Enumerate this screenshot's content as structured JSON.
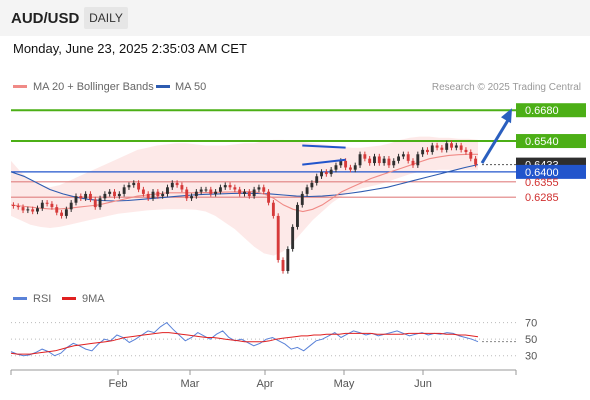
{
  "header": {
    "symbol": "AUD/USD",
    "period": "DAILY"
  },
  "datetime": "Monday, June 23, 2025 2:35:03 AM CET",
  "legend": {
    "ma20_label": "MA 20 + Bollinger Bands",
    "ma50_label": "MA 50",
    "copyright": "Research © 2025 Trading Central",
    "rsi_label": "RSI",
    "rsi_ma_label": "9MA"
  },
  "colors": {
    "up": "#2f2f2f",
    "down": "#d63a3a",
    "ma20": "#f08a86",
    "ma50": "#2d5bb0",
    "bands_fill": "#fde4e2",
    "resistance": "#4caf16",
    "pivot": "#2255cc",
    "support": "#e08080",
    "rsi": "#5a82d8",
    "rsi_ma": "#e02020",
    "arrow": "#2a5fbf"
  },
  "chart_data": {
    "type": "candlestick",
    "x_ticks": [
      "Feb",
      "Mar",
      "Apr",
      "May",
      "Jun"
    ],
    "y_range": [
      0.59,
      0.674
    ],
    "levels": [
      {
        "value": 0.668,
        "label": "0.6680",
        "kind": "resistance"
      },
      {
        "value": 0.654,
        "label": "0.6540",
        "kind": "resistance"
      },
      {
        "value": 0.6433,
        "label": "0.6433",
        "kind": "last"
      },
      {
        "value": 0.64,
        "label": "0.6400",
        "kind": "pivot"
      },
      {
        "value": 0.6355,
        "label": "0.6355",
        "kind": "support"
      },
      {
        "value": 0.6285,
        "label": "0.6285",
        "kind": "support"
      }
    ],
    "closes": [
      0.6245,
      0.624,
      0.6225,
      0.623,
      0.622,
      0.6235,
      0.626,
      0.6255,
      0.624,
      0.6215,
      0.62,
      0.623,
      0.626,
      0.629,
      0.628,
      0.63,
      0.6275,
      0.624,
      0.628,
      0.63,
      0.631,
      0.629,
      0.63,
      0.633,
      0.634,
      0.635,
      0.632,
      0.63,
      0.628,
      0.631,
      0.629,
      0.63,
      0.633,
      0.635,
      0.634,
      0.632,
      0.628,
      0.629,
      0.631,
      0.632,
      0.632,
      0.63,
      0.631,
      0.633,
      0.634,
      0.633,
      0.632,
      0.63,
      0.631,
      0.629,
      0.632,
      0.633,
      0.631,
      0.626,
      0.62,
      0.6,
      0.595,
      0.605,
      0.615,
      0.625,
      0.63,
      0.633,
      0.635,
      0.638,
      0.64,
      0.639,
      0.641,
      0.643,
      0.645,
      0.642,
      0.641,
      0.643,
      0.648,
      0.646,
      0.644,
      0.647,
      0.644,
      0.646,
      0.643,
      0.645,
      0.647,
      0.648,
      0.645,
      0.643,
      0.648,
      0.65,
      0.649,
      0.652,
      0.651,
      0.65,
      0.653,
      0.651,
      0.652,
      0.65,
      0.649,
      0.646,
      0.6433
    ],
    "ma20": [
      0.625,
      0.6245,
      0.624,
      0.6235,
      0.6232,
      0.6232,
      0.6235,
      0.624,
      0.6245,
      0.625,
      0.626,
      0.627,
      0.628,
      0.629,
      0.6295,
      0.63,
      0.6305,
      0.6305,
      0.6305,
      0.6305,
      0.6306,
      0.6307,
      0.6308,
      0.6309,
      0.631,
      0.631,
      0.63,
      0.628,
      0.625,
      0.623,
      0.622,
      0.623,
      0.625,
      0.628,
      0.631,
      0.633,
      0.635,
      0.637,
      0.6385,
      0.64,
      0.6415,
      0.643,
      0.6445,
      0.646,
      0.6468,
      0.6475,
      0.6478,
      0.648,
      0.648
    ],
    "ma50": [
      0.64,
      0.638,
      0.635,
      0.632,
      0.63,
      0.6285,
      0.6275,
      0.627,
      0.6268,
      0.627,
      0.6275,
      0.628,
      0.6285,
      0.629,
      0.6295,
      0.6298,
      0.63,
      0.6302,
      0.6303,
      0.6302,
      0.63,
      0.6295,
      0.629,
      0.6288,
      0.629,
      0.6295,
      0.6302,
      0.631,
      0.632,
      0.633,
      0.6345,
      0.636,
      0.6375,
      0.639,
      0.6405,
      0.642,
      0.6433
    ],
    "bollinger_upper": [
      0.645,
      0.64,
      0.636,
      0.634,
      0.633,
      0.634,
      0.636,
      0.638,
      0.64,
      0.642,
      0.644,
      0.646,
      0.648,
      0.65,
      0.651,
      0.652,
      0.6525,
      0.653,
      0.653,
      0.6525,
      0.652,
      0.652,
      0.652,
      0.6525,
      0.653,
      0.653,
      0.654,
      0.6545,
      0.6545,
      0.654,
      0.6535,
      0.653,
      0.6525,
      0.652,
      0.6515,
      0.651,
      0.651,
      0.6515,
      0.652,
      0.653,
      0.6545,
      0.6555,
      0.656,
      0.656,
      0.6555,
      0.6555,
      0.655,
      0.655,
      0.6545
    ],
    "bollinger_lower": [
      0.62,
      0.618,
      0.616,
      0.615,
      0.6145,
      0.615,
      0.616,
      0.617,
      0.618,
      0.619,
      0.62,
      0.621,
      0.6215,
      0.622,
      0.6225,
      0.6228,
      0.623,
      0.623,
      0.623,
      0.6228,
      0.622,
      0.62,
      0.617,
      0.614,
      0.61,
      0.606,
      0.603,
      0.602,
      0.604,
      0.608,
      0.613,
      0.618,
      0.622,
      0.626,
      0.629,
      0.631,
      0.6325,
      0.6335,
      0.6345,
      0.636,
      0.6375,
      0.639,
      0.64,
      0.6405,
      0.641,
      0.641,
      0.641,
      0.641,
      0.641
    ],
    "pattern": {
      "upper": [
        0.652,
        0.651
      ],
      "lower": [
        0.6433,
        0.6455
      ]
    },
    "projection": {
      "from": 0.644,
      "to": 0.668
    },
    "rsi": {
      "ticks": [
        70,
        50,
        30
      ],
      "range": [
        20,
        78
      ],
      "values": [
        35,
        32,
        30,
        31,
        34,
        38,
        35,
        30,
        33,
        40,
        45,
        42,
        38,
        36,
        44,
        50,
        48,
        55,
        52,
        46,
        50,
        55,
        60,
        58,
        65,
        70,
        62,
        55,
        48,
        52,
        58,
        54,
        50,
        56,
        60,
        52,
        48,
        50,
        46,
        42,
        45,
        50,
        52,
        48,
        44,
        38,
        40,
        36,
        42,
        48,
        50,
        54,
        58,
        52,
        56,
        60,
        58,
        55,
        57,
        54,
        56,
        58,
        60,
        57,
        54,
        56,
        58,
        55,
        57,
        56,
        58,
        57,
        54,
        52,
        50,
        47
      ],
      "ma": [
        33,
        32,
        32,
        32,
        33,
        34,
        35,
        36,
        38,
        40,
        42,
        43,
        44,
        45,
        46,
        47,
        48,
        50,
        52,
        53,
        54,
        55,
        56,
        57,
        58,
        58,
        57,
        56,
        55,
        54,
        53,
        52,
        52,
        51,
        50,
        49,
        48,
        47,
        47,
        47,
        47,
        48,
        50,
        51,
        52,
        53,
        54,
        54,
        55,
        55,
        56,
        56,
        56,
        57,
        57,
        57,
        57,
        57,
        56,
        56,
        56,
        56,
        56,
        57,
        57,
        57,
        57,
        57,
        57,
        56,
        56,
        55,
        55,
        54,
        53
      ]
    }
  }
}
